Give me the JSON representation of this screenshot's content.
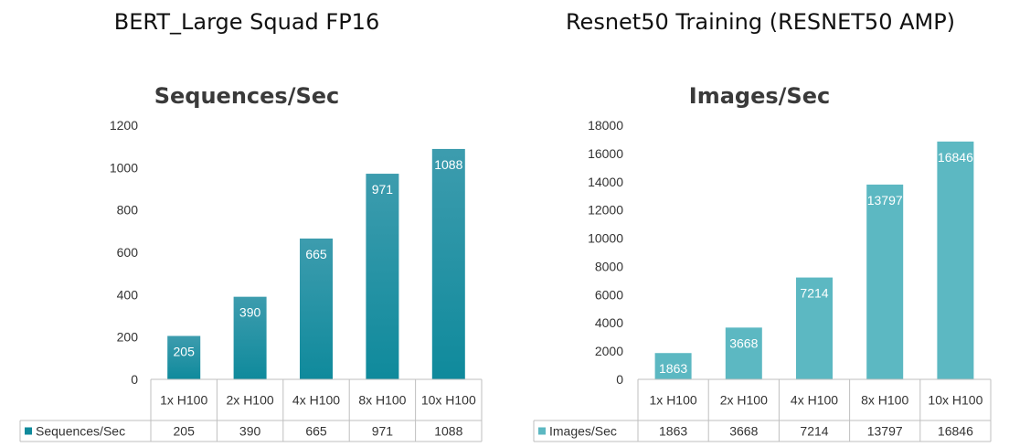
{
  "charts": [
    {
      "heading": "BERT_Large Squad FP16",
      "title": "Sequences/Sec",
      "bar_color_top": "#3d9cae",
      "bar_color_bottom": "#0f8a9c",
      "gradient": true
    },
    {
      "heading": "Resnet50 Training (RESNET50 AMP)",
      "title": "Images/Sec",
      "bar_color_top": "#5cb8c2",
      "bar_color_bottom": "#5cb8c2",
      "gradient": false
    }
  ],
  "chart_data": [
    {
      "type": "bar",
      "title": "Sequences/Sec",
      "categories": [
        "1x H100",
        "2x H100",
        "4x H100",
        "8x H100",
        "10x H100"
      ],
      "series": [
        {
          "name": "Sequences/Sec",
          "values": [
            205,
            390,
            665,
            971,
            1088
          ]
        }
      ],
      "ylim": [
        0,
        1200
      ],
      "yticks": [
        0,
        200,
        400,
        600,
        800,
        1000,
        1200
      ],
      "legend": "data-table-left",
      "grid": false
    },
    {
      "type": "bar",
      "title": "Images/Sec",
      "categories": [
        "1x H100",
        "2x H100",
        "4x H100",
        "8x H100",
        "10x H100"
      ],
      "series": [
        {
          "name": "Images/Sec",
          "values": [
            1863,
            3668,
            7214,
            13797,
            16846
          ]
        }
      ],
      "ylim": [
        0,
        18000
      ],
      "yticks": [
        0,
        2000,
        4000,
        6000,
        8000,
        10000,
        12000,
        14000,
        16000,
        18000
      ],
      "legend": "data-table-left",
      "grid": false
    }
  ]
}
